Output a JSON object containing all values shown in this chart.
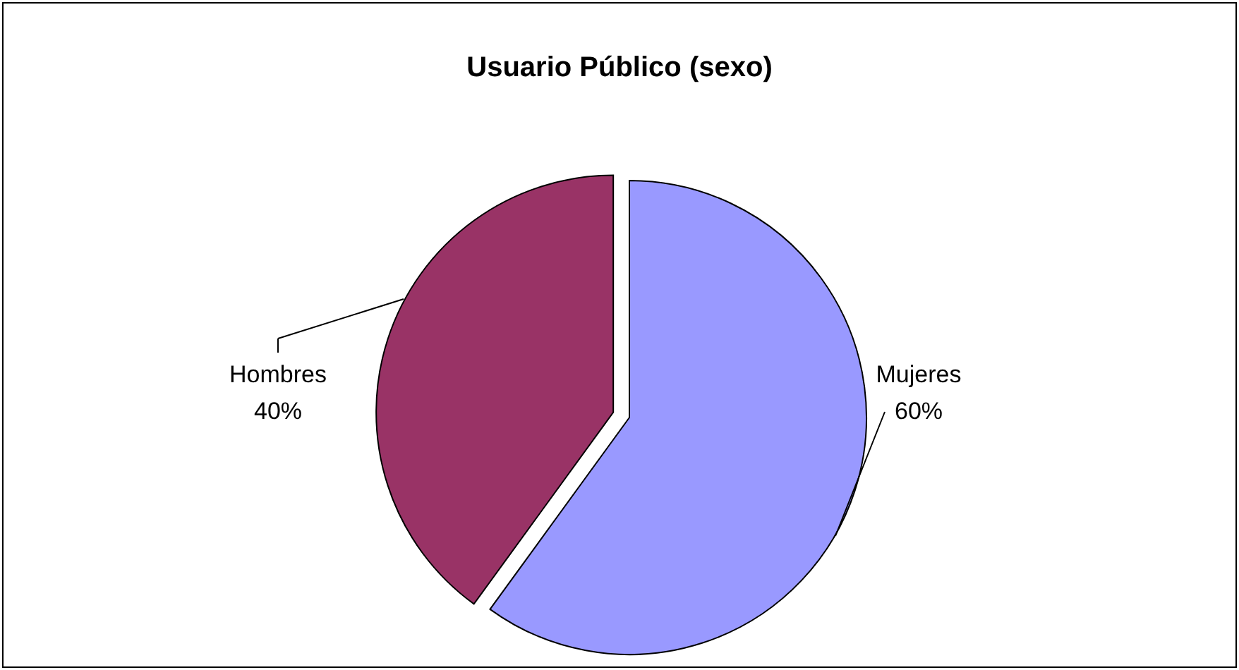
{
  "chart_data": {
    "type": "pie",
    "title": "Usuario Público (sexo)",
    "categories": [
      "Mujeres",
      "Hombres"
    ],
    "values": [
      60,
      40
    ],
    "value_labels": [
      "60%",
      "40%"
    ],
    "colors": [
      "#9999ff",
      "#993366"
    ]
  }
}
